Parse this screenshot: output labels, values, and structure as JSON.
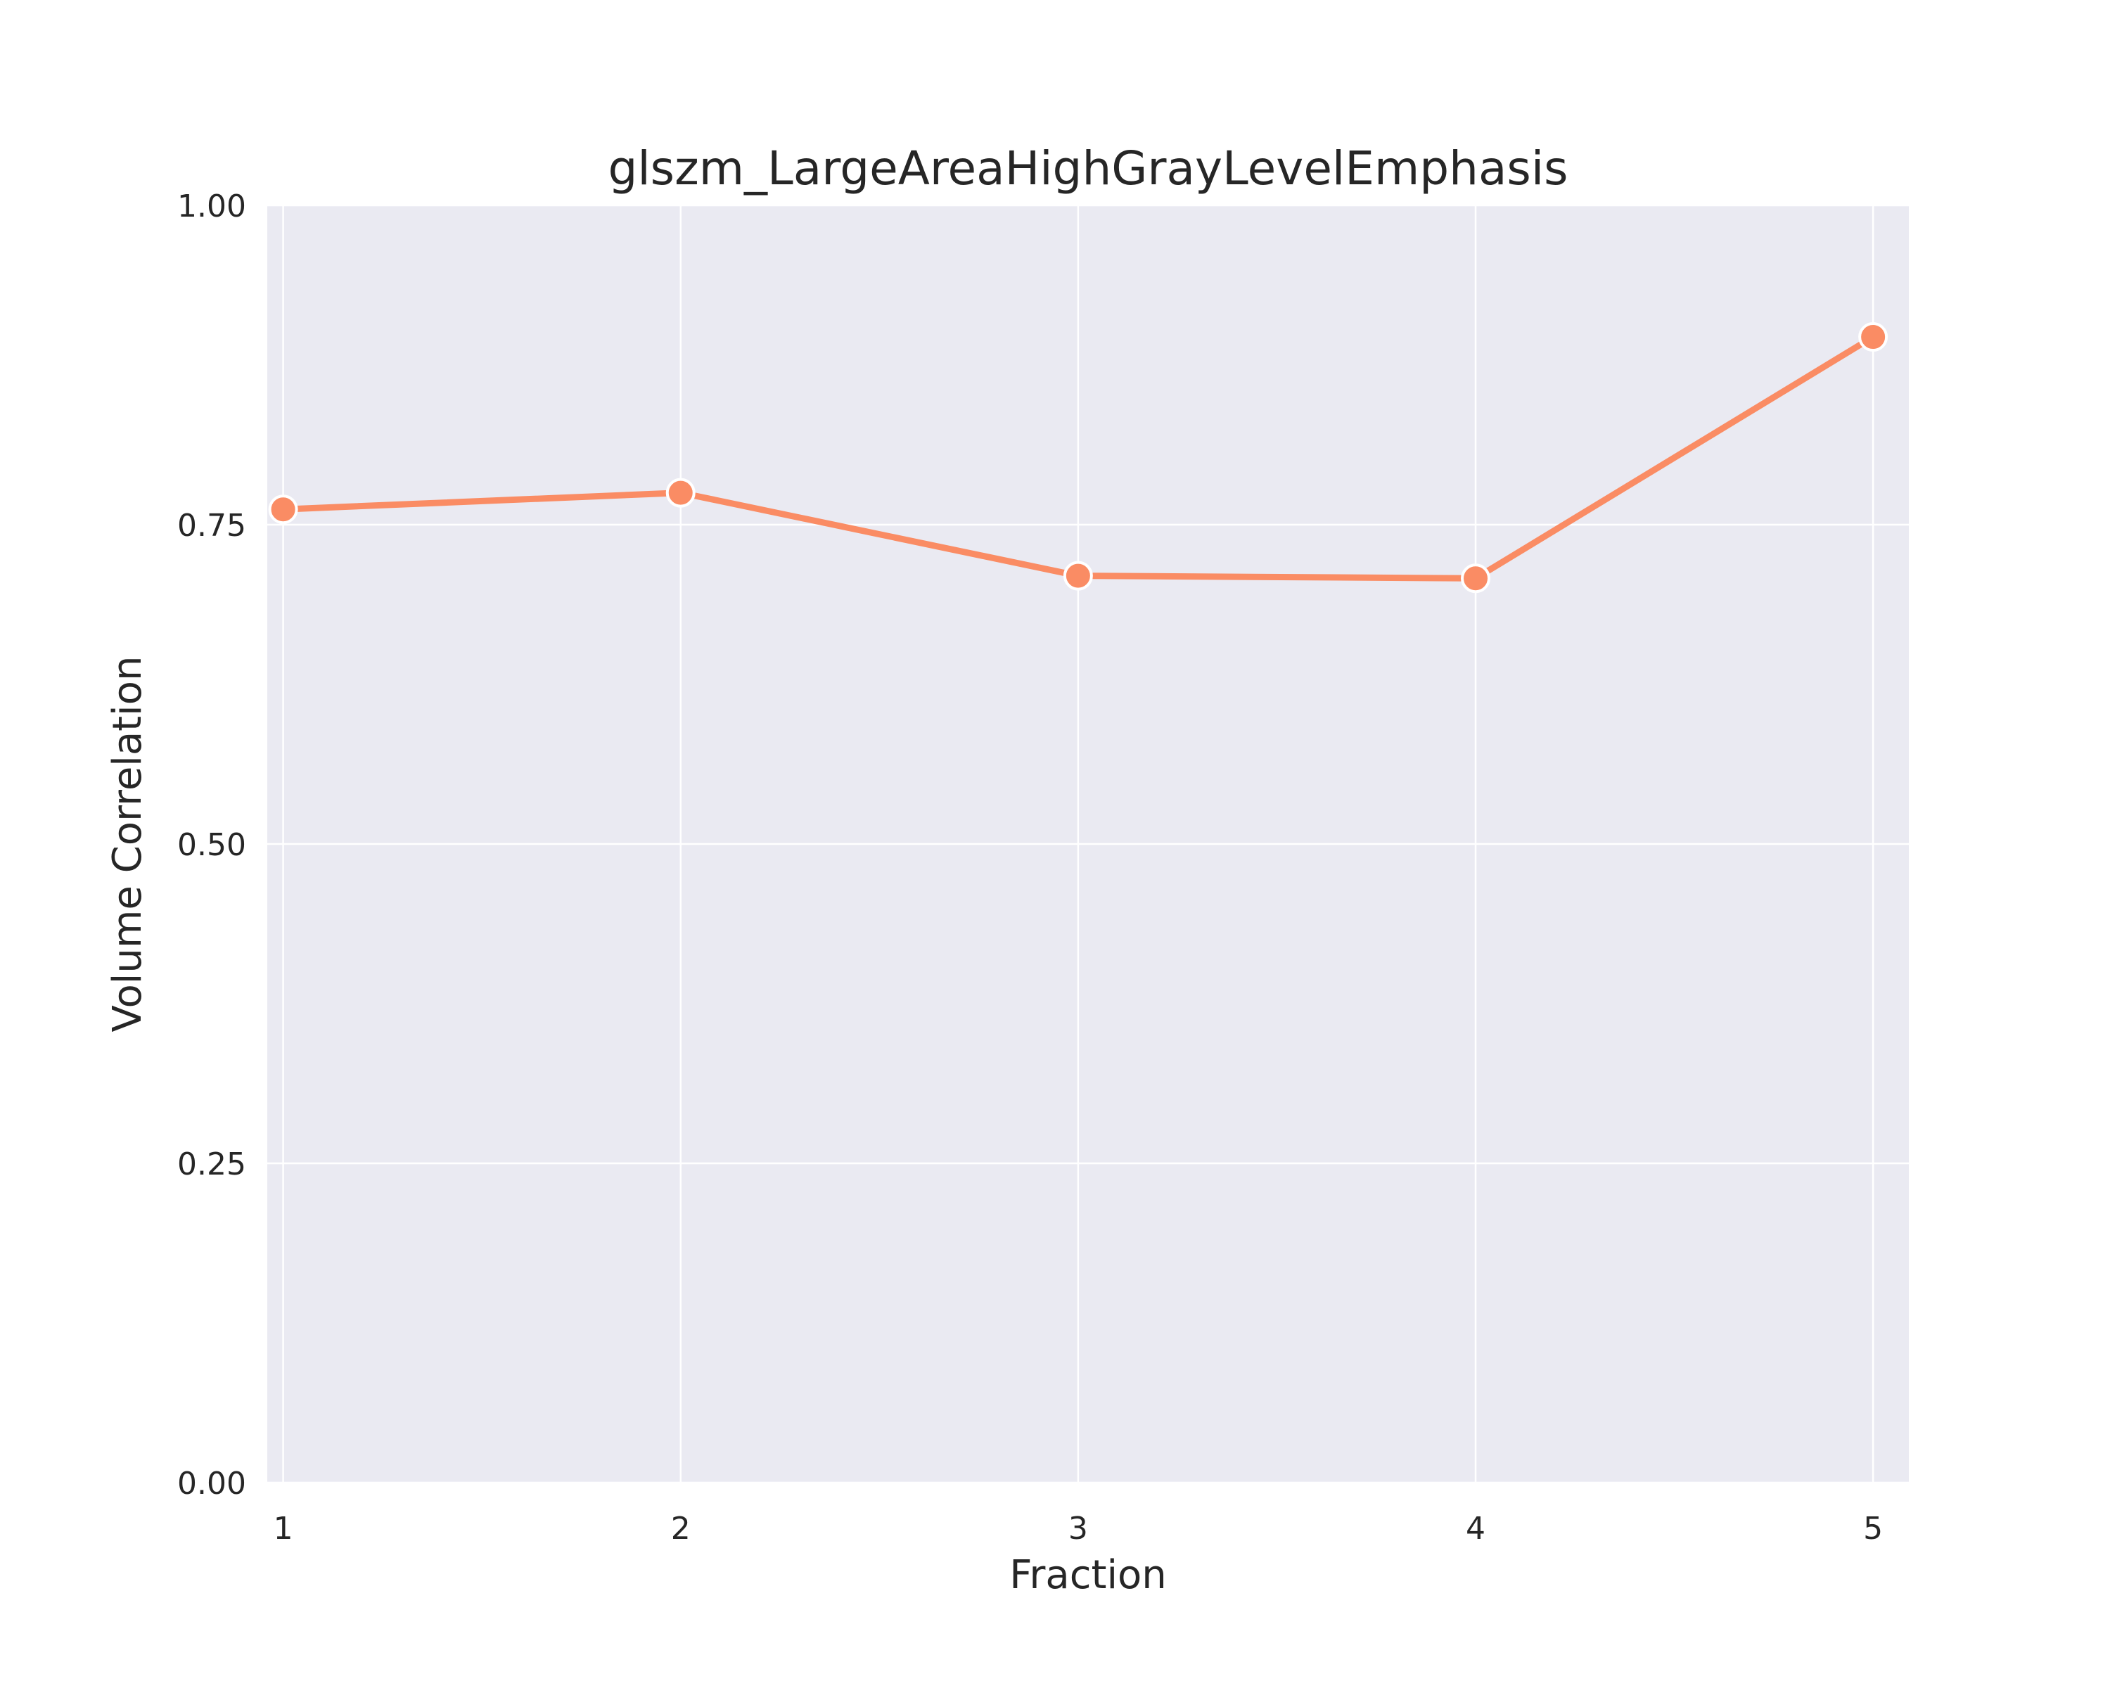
{
  "chart_data": {
    "type": "line",
    "title": "glszm_LargeAreaHighGrayLevelEmphasis",
    "xlabel": "Fraction",
    "ylabel": "Volume Correlation",
    "x": [
      1,
      2,
      3,
      4,
      5
    ],
    "xticks": [
      "1",
      "2",
      "3",
      "4",
      "5"
    ],
    "xlim": [
      0.96,
      5.09
    ],
    "ylim": [
      0,
      1
    ],
    "yticks": [
      0,
      0.25,
      0.5,
      0.75,
      1.0
    ],
    "ytick_labels": [
      "0.00",
      "0.25",
      "0.50",
      "0.75",
      "1.00"
    ],
    "series": [
      {
        "values": [
          0.762,
          0.775,
          0.71,
          0.708,
          0.897
        ],
        "color": "#fa8c64"
      }
    ],
    "grid": true,
    "background_color": "#eaeaf2",
    "grid_color": "#ffffff"
  }
}
